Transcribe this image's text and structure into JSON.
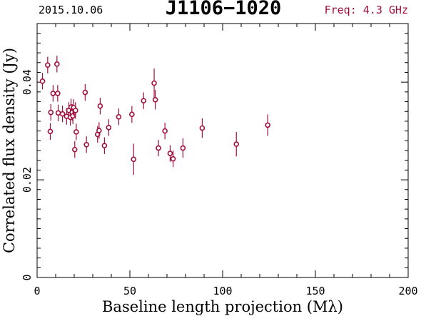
{
  "header": {
    "date": "2015.10.06",
    "source": "J1106−1020",
    "freq": "Freq: 4.3 GHz"
  },
  "colors": {
    "accent": "#a0103c",
    "axis": "#000000",
    "background": "#ffffff"
  },
  "chart_data": {
    "type": "scatter",
    "title": "J1106−1020",
    "xlabel": "Baseline length projection (Mλ)",
    "ylabel": "Correlated flux density (Jy)",
    "xlim": [
      0,
      200
    ],
    "ylim": [
      0,
      0.052
    ],
    "xticks": [
      0,
      50,
      100,
      150,
      200
    ],
    "xtick_labels": [
      "0",
      "50",
      "100",
      "150",
      "200"
    ],
    "yticks": [
      0,
      0.02,
      0.04
    ],
    "ytick_labels": [
      "0",
      "0.02",
      "0.04"
    ],
    "grid": false,
    "points": [
      {
        "x": 2.9,
        "y": 0.0402,
        "err": 0.0017
      },
      {
        "x": 5.7,
        "y": 0.0435,
        "err": 0.0017
      },
      {
        "x": 7.1,
        "y": 0.0299,
        "err": 0.0017
      },
      {
        "x": 7.4,
        "y": 0.0338,
        "err": 0.0017
      },
      {
        "x": 8.6,
        "y": 0.0377,
        "err": 0.0017
      },
      {
        "x": 10.7,
        "y": 0.0437,
        "err": 0.0017
      },
      {
        "x": 11.1,
        "y": 0.0377,
        "err": 0.0017
      },
      {
        "x": 11.4,
        "y": 0.0337,
        "err": 0.0017
      },
      {
        "x": 13.7,
        "y": 0.0335,
        "err": 0.0017
      },
      {
        "x": 15.9,
        "y": 0.033,
        "err": 0.0017
      },
      {
        "x": 17.1,
        "y": 0.0342,
        "err": 0.0017
      },
      {
        "x": 17.9,
        "y": 0.0328,
        "err": 0.0017
      },
      {
        "x": 18.3,
        "y": 0.0349,
        "err": 0.0017
      },
      {
        "x": 18.9,
        "y": 0.0338,
        "err": 0.0017
      },
      {
        "x": 19.3,
        "y": 0.0331,
        "err": 0.0017
      },
      {
        "x": 19.7,
        "y": 0.0348,
        "err": 0.0017
      },
      {
        "x": 20.3,
        "y": 0.0262,
        "err": 0.0017
      },
      {
        "x": 20.7,
        "y": 0.0342,
        "err": 0.0017
      },
      {
        "x": 21.1,
        "y": 0.0298,
        "err": 0.0017
      },
      {
        "x": 25.9,
        "y": 0.0379,
        "err": 0.0017
      },
      {
        "x": 26.6,
        "y": 0.0272,
        "err": 0.0017
      },
      {
        "x": 32.6,
        "y": 0.0293,
        "err": 0.0017
      },
      {
        "x": 33.4,
        "y": 0.0301,
        "err": 0.0017
      },
      {
        "x": 34.0,
        "y": 0.0351,
        "err": 0.0017
      },
      {
        "x": 36.3,
        "y": 0.027,
        "err": 0.0017
      },
      {
        "x": 38.6,
        "y": 0.0307,
        "err": 0.0017
      },
      {
        "x": 44.0,
        "y": 0.0329,
        "err": 0.0017
      },
      {
        "x": 51.1,
        "y": 0.0334,
        "err": 0.0017
      },
      {
        "x": 52.0,
        "y": 0.0242,
        "err": 0.0032
      },
      {
        "x": 57.4,
        "y": 0.0362,
        "err": 0.0017
      },
      {
        "x": 63.1,
        "y": 0.0398,
        "err": 0.003
      },
      {
        "x": 63.7,
        "y": 0.0364,
        "err": 0.002
      },
      {
        "x": 65.4,
        "y": 0.0265,
        "err": 0.0017
      },
      {
        "x": 68.9,
        "y": 0.03,
        "err": 0.0017
      },
      {
        "x": 71.7,
        "y": 0.0254,
        "err": 0.0017
      },
      {
        "x": 73.3,
        "y": 0.0243,
        "err": 0.0017
      },
      {
        "x": 78.6,
        "y": 0.0265,
        "err": 0.002
      },
      {
        "x": 89.0,
        "y": 0.0306,
        "err": 0.002
      },
      {
        "x": 107.4,
        "y": 0.0273,
        "err": 0.0025
      },
      {
        "x": 124.3,
        "y": 0.0312,
        "err": 0.0022
      }
    ]
  }
}
